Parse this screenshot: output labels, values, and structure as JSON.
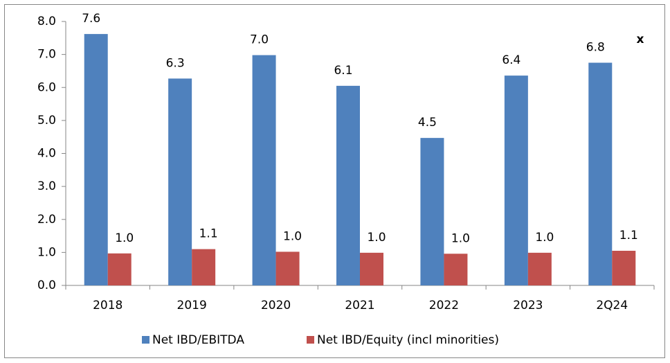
{
  "chart_data": {
    "type": "bar",
    "annotation": "x",
    "categories": [
      "2018",
      "2019",
      "2020",
      "2021",
      "2022",
      "2023",
      "2Q24"
    ],
    "series": [
      {
        "name": "Net IBD/EBITDA",
        "color": "#4f81bd",
        "values": [
          7.62,
          6.27,
          6.98,
          6.05,
          4.47,
          6.36,
          6.75
        ],
        "value_labels": [
          "7.6",
          "6.3",
          "7.0",
          "6.1",
          "4.5",
          "6.4",
          "6.8"
        ]
      },
      {
        "name": "Net IBD/Equity (incl minorities)",
        "color": "#c0504d",
        "values": [
          0.97,
          1.1,
          1.02,
          0.99,
          0.96,
          0.99,
          1.05
        ],
        "value_labels": [
          "1.0",
          "1.1",
          "1.0",
          "1.0",
          "1.0",
          "1.0",
          "1.1"
        ]
      }
    ],
    "ylim": [
      0,
      8
    ],
    "yticks": [
      {
        "value": 0,
        "label": "0.0"
      },
      {
        "value": 1,
        "label": "1.0"
      },
      {
        "value": 2,
        "label": "2.0"
      },
      {
        "value": 3,
        "label": "3.0"
      },
      {
        "value": 4,
        "label": "4.0"
      },
      {
        "value": 5,
        "label": "5.0"
      },
      {
        "value": 6,
        "label": "6.0"
      },
      {
        "value": 7,
        "label": "7.0"
      },
      {
        "value": 8,
        "label": "8.0"
      }
    ],
    "grid": false,
    "legend": "bottom"
  }
}
